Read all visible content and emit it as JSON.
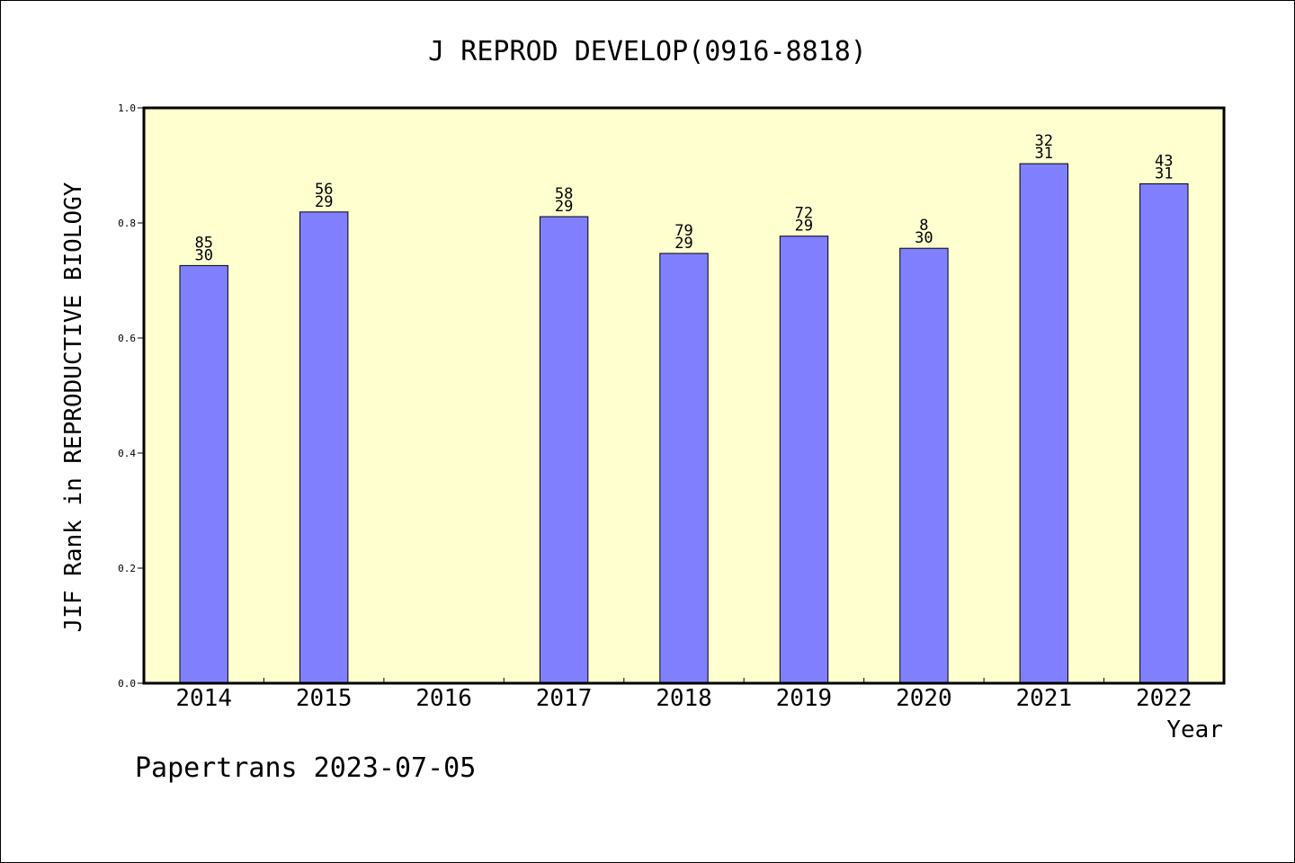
{
  "chart_data": {
    "type": "bar",
    "title": "J REPROD DEVELOP(0916-8818)",
    "xlabel": "Year",
    "ylabel": "JIF Rank in REPRODUCTIVE BIOLOGY",
    "ylim": [
      0,
      1.0
    ],
    "yticks": [
      "0.0",
      "0.2",
      "0.4",
      "0.6",
      "0.8",
      "1.0"
    ],
    "categories": [
      "2014",
      "2015",
      "2016",
      "2017",
      "2018",
      "2019",
      "2020",
      "2021",
      "2022"
    ],
    "values": [
      0.726,
      0.819,
      null,
      0.811,
      0.747,
      0.777,
      0.756,
      0.903,
      0.868
    ],
    "labels_top": [
      "85",
      "56",
      "",
      "58",
      "79",
      "72",
      "8",
      "32",
      "43"
    ],
    "labels_bottom": [
      "30",
      "29",
      "",
      "29",
      "29",
      "29",
      "30",
      "31",
      "31"
    ],
    "grid": false,
    "colors": {
      "plot_background": "#ffffd0",
      "bar_fill": "#8080ff",
      "bar_stroke": "#000000"
    }
  },
  "footer": "Papertrans 2023-07-05"
}
